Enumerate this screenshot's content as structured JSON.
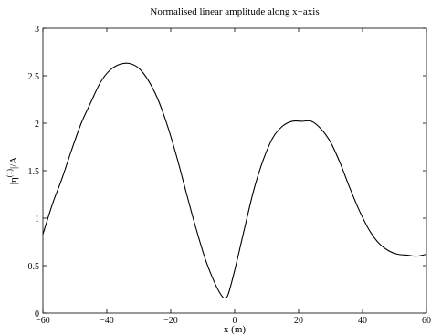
{
  "chart_data": {
    "type": "line",
    "title": "Normalised linear amplitude along x−axis",
    "xlabel": "x (m)",
    "ylabel_main": "|η",
    "ylabel_sup": "(1)",
    "ylabel_tail": "|/A",
    "xlim": [
      -60,
      60
    ],
    "ylim": [
      0,
      3
    ],
    "xticks": [
      -60,
      -40,
      -20,
      0,
      20,
      40,
      60
    ],
    "xtick_labels": [
      "−60",
      "−40",
      "−20",
      "0",
      "20",
      "40",
      "60"
    ],
    "yticks": [
      0,
      0.5,
      1,
      1.5,
      2,
      2.5,
      3
    ],
    "ytick_labels": [
      "0",
      "0.5",
      "1",
      "1.5",
      "2",
      "2.5",
      "3"
    ],
    "grid": false,
    "series": [
      {
        "x": [
          -60,
          -57,
          -54,
          -51,
          -48,
          -45,
          -42,
          -39,
          -36,
          -33,
          -30,
          -27,
          -24,
          -21,
          -18,
          -15,
          -12,
          -9,
          -6,
          -4,
          -3,
          -2,
          0,
          3,
          6,
          9,
          12,
          15,
          18,
          21,
          24,
          27,
          30,
          33,
          36,
          39,
          42,
          45,
          48,
          51,
          54,
          57,
          60
        ],
        "y": [
          0.83,
          1.15,
          1.42,
          1.72,
          2.0,
          2.22,
          2.43,
          2.56,
          2.62,
          2.63,
          2.58,
          2.45,
          2.25,
          1.97,
          1.63,
          1.25,
          0.88,
          0.55,
          0.3,
          0.18,
          0.16,
          0.2,
          0.45,
          0.88,
          1.3,
          1.62,
          1.85,
          1.97,
          2.02,
          2.02,
          2.02,
          1.94,
          1.8,
          1.58,
          1.32,
          1.08,
          0.88,
          0.74,
          0.66,
          0.62,
          0.61,
          0.6,
          0.62
        ]
      }
    ]
  }
}
